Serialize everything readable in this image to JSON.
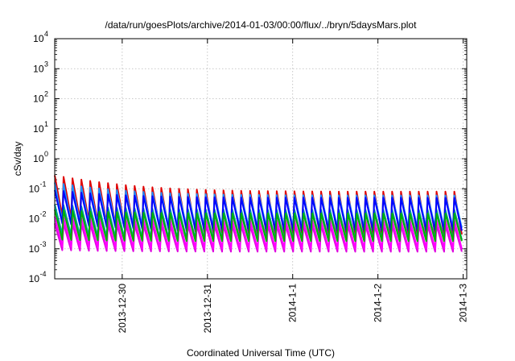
{
  "chart_data": {
    "type": "line",
    "title": "/data/run/goesPlots/archive/2014-01-03/00:00/flux/../bryn/5daysMars.plot",
    "xlabel": "Coordinated Universal Time (UTC)",
    "ylabel": "cSv/day",
    "yscale": "log",
    "ylim": [
      0.0001,
      10000
    ],
    "xlim": [
      "2013-12-29T05:00",
      "2014-01-03T01:00"
    ],
    "y_ticks": [
      {
        "base": "10",
        "exp": "4"
      },
      {
        "base": "10",
        "exp": "3"
      },
      {
        "base": "10",
        "exp": "2"
      },
      {
        "base": "10",
        "exp": "1"
      },
      {
        "base": "10",
        "exp": "0"
      },
      {
        "base": "10",
        "exp": "-1"
      },
      {
        "base": "10",
        "exp": "-2"
      },
      {
        "base": "10",
        "exp": "-3"
      },
      {
        "base": "10",
        "exp": "-4"
      }
    ],
    "x_ticks": [
      "2013-12-30",
      "2013-12-31",
      "2014-1-1",
      "2014-1-2",
      "2014-1-3"
    ],
    "grid": true,
    "legend": "none",
    "pattern": {
      "start": "2013-12-29T05:00",
      "cycle_hours": 2.5,
      "cycles": 46,
      "note": "sawtooth: peak then decay over each cycle"
    },
    "series": [
      {
        "color": "#e00000",
        "peak_start": 0.28,
        "trough_start": 0.012,
        "peak_late": 0.08,
        "trough_late": 0.003
      },
      {
        "color": "#e000e0",
        "peak_start": 0.007,
        "trough_start": 0.0009,
        "peak_late": 0.006,
        "trough_late": 0.0008
      },
      {
        "color": "#1e90ff",
        "peak_start": 0.16,
        "trough_start": 0.008,
        "peak_late": 0.06,
        "trough_late": 0.005
      },
      {
        "color": "#00a0a0",
        "peak_start": 0.03,
        "trough_start": 0.003,
        "peak_late": 0.02,
        "trough_late": 0.002
      },
      {
        "color": "#0000ff",
        "peak_start": 0.09,
        "trough_start": 0.007,
        "peak_late": 0.05,
        "trough_late": 0.004
      },
      {
        "color": "#ff00ff",
        "peak_start": 0.012,
        "trough_start": 0.0012,
        "peak_late": 0.009,
        "trough_late": 0.001
      },
      {
        "color": "#00b000",
        "peak_start": 0.02,
        "trough_start": 0.002,
        "peak_late": 0.015,
        "trough_late": 0.0018
      }
    ]
  }
}
